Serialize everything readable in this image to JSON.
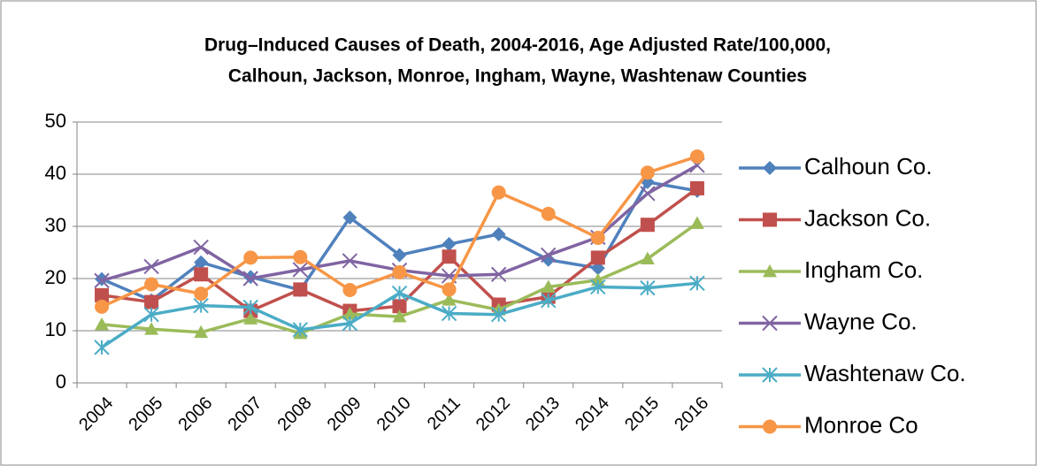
{
  "chart_data": {
    "type": "line",
    "title": [
      "Drug–Induced Causes of Death, 2004-2016, Age Adjusted Rate/100,000,",
      "Calhoun, Jackson, Monroe, Ingham, Wayne, Washtenaw Counties"
    ],
    "categories": [
      "2004",
      "2005",
      "2006",
      "2007",
      "2008",
      "2009",
      "2010",
      "2011",
      "2012",
      "2013",
      "2014",
      "2015",
      "2016"
    ],
    "series": [
      {
        "name": "Calhoun Co.",
        "color": "#4f81bd",
        "marker": "diamond",
        "values": [
          19.9,
          15.8,
          23.1,
          20.3,
          17.8,
          31.7,
          24.5,
          26.6,
          28.5,
          23.6,
          22,
          38.5,
          36.8
        ]
      },
      {
        "name": "Jackson Co.",
        "color": "#c0504d",
        "marker": "square",
        "values": [
          16.8,
          15.5,
          20.8,
          13.8,
          17.9,
          13.8,
          14.7,
          24.2,
          15,
          16.5,
          24,
          30.3,
          37.3
        ]
      },
      {
        "name": "Ingham Co.",
        "color": "#9bbb59",
        "marker": "triangle",
        "values": [
          11.2,
          10.3,
          9.7,
          12.3,
          9.5,
          13.2,
          12.7,
          15.9,
          14,
          18.4,
          19.7,
          23.8,
          30.6
        ]
      },
      {
        "name": "Wayne Co.",
        "color": "#8064a2",
        "marker": "x",
        "values": [
          19.6,
          22.3,
          26,
          20,
          21.7,
          23.4,
          21.6,
          20.5,
          20.8,
          24.5,
          27.9,
          36.3,
          41.7
        ]
      },
      {
        "name": "Washtenaw Co.",
        "color": "#4bacc6",
        "marker": "star",
        "values": [
          6.8,
          13.1,
          14.8,
          14.5,
          10.2,
          11.4,
          17.2,
          13.3,
          13.1,
          15.8,
          18.4,
          18.2,
          19.1
        ]
      },
      {
        "name": "Monroe Co",
        "color": "#f79646",
        "marker": "circle",
        "values": [
          14.6,
          18.9,
          17.1,
          24,
          24.1,
          17.8,
          21.2,
          17.9,
          36.5,
          32.4,
          27.8,
          40.3,
          43.4
        ]
      }
    ],
    "ylim": [
      0,
      50
    ],
    "yticks": [
      0,
      10,
      20,
      30,
      40,
      50
    ],
    "grid": true,
    "legend": "right"
  }
}
